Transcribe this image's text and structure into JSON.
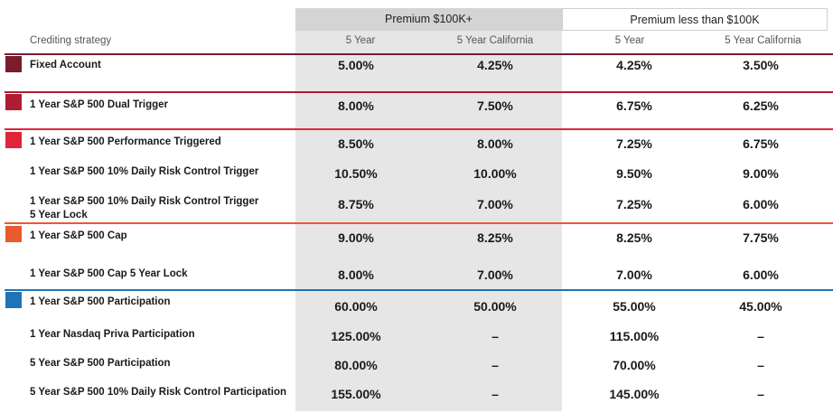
{
  "header": {
    "group1": "Premium $100K+",
    "group2": "Premium less than $100K",
    "strategy_label": "Crediting strategy",
    "subcols": [
      "5 Year",
      "5 Year California",
      "5 Year",
      "5 Year California"
    ]
  },
  "colors": {
    "group_fixed": "#7a1b2e",
    "group_dual": "#b01c33",
    "group_perf": "#e0253a",
    "group_cap": "#ea5a2b",
    "group_participation": "#1f73b7",
    "column_shade": "#e6e6e6"
  },
  "rows": [
    {
      "label": "Fixed Account",
      "values": [
        "5.00%",
        "4.25%",
        "4.25%",
        "3.50%"
      ]
    },
    {
      "label": "1 Year S&P 500 Dual Trigger",
      "values": [
        "8.00%",
        "7.50%",
        "6.75%",
        "6.25%"
      ]
    },
    {
      "label": "1 Year S&P 500 Performance Triggered",
      "values": [
        "8.50%",
        "8.00%",
        "7.25%",
        "6.75%"
      ]
    },
    {
      "label": "1 Year S&P 500 10% Daily Risk Control Trigger",
      "values": [
        "10.50%",
        "10.00%",
        "9.50%",
        "9.00%"
      ]
    },
    {
      "label": "1 Year S&P 500 10% Daily Risk Control Trigger\n5 Year Lock",
      "values": [
        "8.75%",
        "7.00%",
        "7.25%",
        "6.00%"
      ]
    },
    {
      "label": "1 Year S&P 500 Cap",
      "values": [
        "9.00%",
        "8.25%",
        "8.25%",
        "7.75%"
      ]
    },
    {
      "label": "1 Year S&P 500 Cap 5 Year Lock",
      "values": [
        "8.00%",
        "7.00%",
        "7.00%",
        "6.00%"
      ]
    },
    {
      "label": "1 Year S&P 500 Participation",
      "values": [
        "60.00%",
        "50.00%",
        "55.00%",
        "45.00%"
      ]
    },
    {
      "label": "1 Year Nasdaq Priva Participation",
      "values": [
        "125.00%",
        "–",
        "115.00%",
        "–"
      ]
    },
    {
      "label": "5 Year S&P 500 Participation",
      "values": [
        "80.00%",
        "–",
        "70.00%",
        "–"
      ]
    },
    {
      "label": "5 Year S&P 500 10% Daily Risk Control Participation",
      "values": [
        "155.00%",
        "–",
        "145.00%",
        "–"
      ]
    }
  ]
}
